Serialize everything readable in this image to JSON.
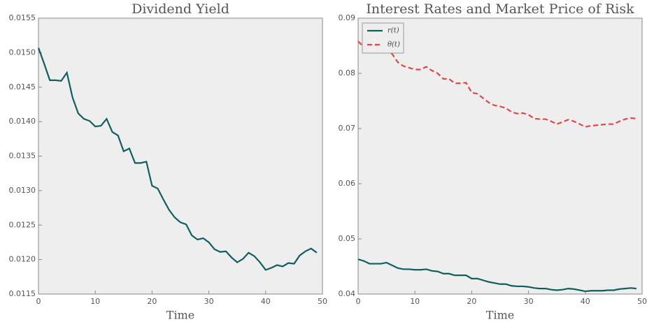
{
  "chart_data": [
    {
      "type": "line",
      "title": "Dividend Yield",
      "xlabel": "Time",
      "color": "#0f5f5f",
      "x": [
        0,
        1,
        2,
        3,
        4,
        5,
        6,
        7,
        8,
        9,
        10,
        11,
        12,
        13,
        14,
        15,
        16,
        17,
        18,
        19,
        20,
        21,
        22,
        23,
        24,
        25,
        26,
        27,
        28,
        29,
        30,
        31,
        32,
        33,
        34,
        35,
        36,
        37,
        38,
        39,
        40,
        41,
        42,
        43,
        44,
        45,
        46,
        47,
        48,
        49
      ],
      "values": [
        0.01507,
        0.01484,
        0.0146,
        0.0146,
        0.01459,
        0.01471,
        0.01435,
        0.01412,
        0.01404,
        0.01401,
        0.01393,
        0.01394,
        0.01404,
        0.01385,
        0.0138,
        0.01357,
        0.01361,
        0.0134,
        0.0134,
        0.01342,
        0.01307,
        0.01303,
        0.01287,
        0.01272,
        0.01261,
        0.01254,
        0.01251,
        0.01235,
        0.01229,
        0.01231,
        0.01225,
        0.01215,
        0.01211,
        0.01212,
        0.01203,
        0.01196,
        0.01201,
        0.0121,
        0.01205,
        0.01196,
        0.01185,
        0.01188,
        0.01192,
        0.0119,
        0.01195,
        0.01194,
        0.01206,
        0.01212,
        0.01216,
        0.0121
      ],
      "xlim": [
        0,
        50
      ],
      "xticks": [
        0,
        10,
        20,
        30,
        40,
        50
      ],
      "ylim": [
        0.0115,
        0.0155
      ],
      "yticks": [
        0.0115,
        {
          "value": 0.012,
          "label": "0.0120"
        },
        0.0125,
        {
          "value": 0.013,
          "label": "0.0130"
        },
        0.0135,
        {
          "value": 0.014,
          "label": "0.0140"
        },
        0.0145,
        {
          "value": 0.015,
          "label": "0.0150"
        },
        0.0155
      ]
    },
    {
      "type": "line",
      "title": "Interest Rates and Market Price of Risk",
      "xlabel": "Time",
      "legend": "upper left",
      "x": [
        0,
        1,
        2,
        3,
        4,
        5,
        6,
        7,
        8,
        9,
        10,
        11,
        12,
        13,
        14,
        15,
        16,
        17,
        18,
        19,
        20,
        21,
        22,
        23,
        24,
        25,
        26,
        27,
        28,
        29,
        30,
        31,
        32,
        33,
        34,
        35,
        36,
        37,
        38,
        39,
        40,
        41,
        42,
        43,
        44,
        45,
        46,
        47,
        48,
        49
      ],
      "series": [
        {
          "name": "r(t)",
          "color": "#0f5f5f",
          "linestyle": "solid",
          "values": [
            0.0463,
            0.046,
            0.0455,
            0.0455,
            0.0455,
            0.0457,
            0.0452,
            0.0447,
            0.0445,
            0.0445,
            0.0444,
            0.0444,
            0.0445,
            0.0442,
            0.0441,
            0.0437,
            0.0437,
            0.0434,
            0.0434,
            0.0434,
            0.0428,
            0.0428,
            0.0425,
            0.0422,
            0.042,
            0.0418,
            0.0418,
            0.0415,
            0.0414,
            0.0414,
            0.0413,
            0.0411,
            0.041,
            0.041,
            0.0408,
            0.0407,
            0.0408,
            0.041,
            0.0409,
            0.0407,
            0.0405,
            0.0406,
            0.0406,
            0.0406,
            0.0407,
            0.0407,
            0.0409,
            0.041,
            0.0411,
            0.041
          ]
        },
        {
          "name": "θ(t)",
          "color": "#e04848",
          "linestyle": "dashed",
          "values": [
            0.0858,
            0.0848,
            0.0838,
            0.0838,
            0.0842,
            0.084,
            0.0835,
            0.082,
            0.0813,
            0.081,
            0.0807,
            0.0807,
            0.0812,
            0.0805,
            0.08,
            0.079,
            0.079,
            0.0782,
            0.0782,
            0.0783,
            0.0765,
            0.0763,
            0.0755,
            0.0747,
            0.0742,
            0.074,
            0.0737,
            0.073,
            0.0727,
            0.0728,
            0.0725,
            0.0718,
            0.0717,
            0.0717,
            0.0713,
            0.0708,
            0.0712,
            0.0716,
            0.0713,
            0.0708,
            0.0703,
            0.0705,
            0.0706,
            0.0707,
            0.0708,
            0.0708,
            0.0713,
            0.0717,
            0.0719,
            0.0718
          ]
        }
      ],
      "xlim": [
        0,
        50
      ],
      "xticks": [
        0,
        10,
        20,
        30,
        40,
        50
      ],
      "ylim": [
        0.04,
        0.09
      ],
      "yticks": [
        0.04,
        0.05,
        0.06,
        0.07,
        0.08,
        0.09
      ]
    }
  ]
}
